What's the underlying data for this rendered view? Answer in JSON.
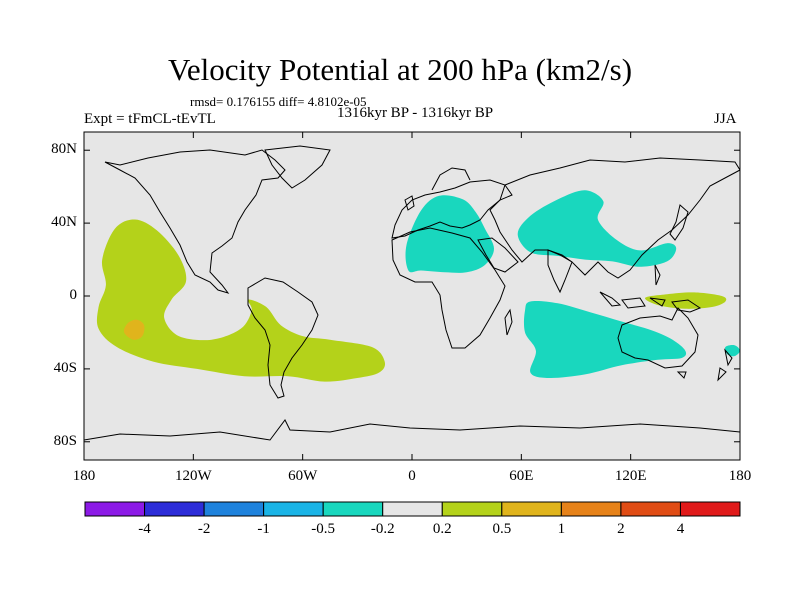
{
  "title": "Velocity Potential at 200 hPa (km2/s)",
  "stats": "rmsd= 0.176155 diff= 4.8102e-05",
  "left_label": "Expt = tFmCL-tEvTL",
  "center_label": "1316kyr BP - 1316kyr BP",
  "right_label": "JJA",
  "axes": {
    "lat_ticks": [
      {
        "value": 80,
        "label": "80N"
      },
      {
        "value": 40,
        "label": "40N"
      },
      {
        "value": 0,
        "label": "0"
      },
      {
        "value": -40,
        "label": "40S"
      },
      {
        "value": -80,
        "label": "80S"
      }
    ],
    "lon_ticks": [
      {
        "value": -180,
        "label": "180"
      },
      {
        "value": -120,
        "label": "120W"
      },
      {
        "value": -60,
        "label": "60W"
      },
      {
        "value": 0,
        "label": "0"
      },
      {
        "value": 60,
        "label": "60E"
      },
      {
        "value": 120,
        "label": "120E"
      },
      {
        "value": 180,
        "label": "180"
      }
    ],
    "lon_range": [
      -180,
      180
    ],
    "lat_range": [
      -90,
      90
    ]
  },
  "colorbar": {
    "colors": [
      "#8c1ae6",
      "#2d2dd8",
      "#1e82dc",
      "#1ab4e6",
      "#19d7be",
      "#e6e6e6",
      "#b4d21a",
      "#e0b41c",
      "#e68219",
      "#e04c14",
      "#e01a1a"
    ],
    "labels": [
      "-4",
      "-2",
      "-1",
      "-0.5",
      "-0.2",
      "0.2",
      "0.5",
      "1",
      "2",
      "4"
    ]
  },
  "colors": {
    "background": "#e6e6e6",
    "negative": "#19d7be",
    "positive": "#b4d21a",
    "strong_positive": "#e0b41c"
  },
  "chart_data": {
    "type": "heatmap",
    "title": "Velocity Potential at 200 hPa (km2/s)",
    "variable": "velocity potential anomaly at 200 hPa (km2/s)",
    "contour_levels": [
      -4,
      -2,
      -1,
      -0.5,
      -0.2,
      0.2,
      0.5,
      1,
      2,
      4
    ],
    "xlim": [
      -180,
      180
    ],
    "ylim": [
      -90,
      90
    ],
    "regions": [
      {
        "name": "Eastern Pacific positive anomaly",
        "category": "0.2 to 0.5",
        "color": "#b4d21a",
        "lonlat": [
          [
            -163,
            37
          ],
          [
            -152,
            42
          ],
          [
            -140,
            36
          ],
          [
            -128,
            22
          ],
          [
            -124,
            8
          ],
          [
            -132,
            -2
          ],
          [
            -136,
            -12
          ],
          [
            -128,
            -22
          ],
          [
            -110,
            -24
          ],
          [
            -94,
            -18
          ],
          [
            -88,
            -8
          ],
          [
            -90,
            -2
          ],
          [
            -80,
            -6
          ],
          [
            -72,
            -16
          ],
          [
            -60,
            -22
          ],
          [
            -45,
            -24
          ],
          [
            -22,
            -28
          ],
          [
            -15,
            -36
          ],
          [
            -18,
            -42
          ],
          [
            -30,
            -45
          ],
          [
            -48,
            -47
          ],
          [
            -68,
            -44
          ],
          [
            -92,
            -44
          ],
          [
            -118,
            -40
          ],
          [
            -142,
            -36
          ],
          [
            -162,
            -28
          ],
          [
            -172,
            -18
          ],
          [
            -172,
            -6
          ],
          [
            -168,
            6
          ],
          [
            -170,
            20
          ]
        ]
      },
      {
        "name": "South Pacific core",
        "category": "0.5 to 1",
        "color": "#e0b41c",
        "lonlat": [
          [
            -156,
            -15
          ],
          [
            -151,
            -13
          ],
          [
            -147,
            -16
          ],
          [
            -148,
            -22
          ],
          [
            -153,
            -24
          ],
          [
            -158,
            -20
          ]
        ]
      },
      {
        "name": "Europe and Africa negative anomaly",
        "category": "-0.5 to -0.2",
        "color": "#19d7be",
        "lonlat": [
          [
            -3,
            28
          ],
          [
            5,
            47
          ],
          [
            15,
            55
          ],
          [
            28,
            53
          ],
          [
            35,
            46
          ],
          [
            40,
            37
          ],
          [
            45,
            26
          ],
          [
            40,
            17
          ],
          [
            30,
            13
          ],
          [
            18,
            13
          ],
          [
            5,
            14
          ],
          [
            -2,
            14
          ]
        ]
      },
      {
        "name": "Asia negative anomaly",
        "category": "-0.5 to -0.2",
        "color": "#19d7be",
        "lonlat": [
          [
            58,
            34
          ],
          [
            65,
            44
          ],
          [
            80,
            53
          ],
          [
            95,
            58
          ],
          [
            105,
            52
          ],
          [
            102,
            42
          ],
          [
            112,
            31
          ],
          [
            125,
            25
          ],
          [
            140,
            29
          ],
          [
            145,
            26
          ],
          [
            140,
            19
          ],
          [
            125,
            16
          ],
          [
            110,
            19
          ],
          [
            95,
            20
          ],
          [
            80,
            22
          ],
          [
            65,
            24
          ]
        ]
      },
      {
        "name": "Indian Ocean negative anomaly",
        "category": "-0.5 to -0.2",
        "color": "#19d7be",
        "lonlat": [
          [
            65,
            -3
          ],
          [
            80,
            -4
          ],
          [
            98,
            -9
          ],
          [
            115,
            -14
          ],
          [
            132,
            -19
          ],
          [
            143,
            -24
          ],
          [
            150,
            -30
          ],
          [
            148,
            -34
          ],
          [
            135,
            -35
          ],
          [
            115,
            -38
          ],
          [
            95,
            -43
          ],
          [
            75,
            -45
          ],
          [
            65,
            -42
          ],
          [
            68,
            -30
          ],
          [
            62,
            -20
          ],
          [
            62,
            -8
          ]
        ]
      },
      {
        "name": "Western Pacific positive anomaly",
        "category": "0.2 to 0.5",
        "color": "#b4d21a",
        "lonlat": [
          [
            128,
            -1
          ],
          [
            140,
            1
          ],
          [
            155,
            2
          ],
          [
            170,
            0
          ],
          [
            172,
            -3
          ],
          [
            165,
            -6
          ],
          [
            150,
            -7
          ],
          [
            135,
            -5
          ]
        ]
      },
      {
        "name": "Southwest Pacific small negative anomaly",
        "category": "-0.5 to -0.2",
        "color": "#19d7be",
        "lonlat": [
          [
            172,
            -28
          ],
          [
            177,
            -27
          ],
          [
            180,
            -30
          ],
          [
            177,
            -33
          ],
          [
            173,
            -32
          ]
        ]
      }
    ]
  }
}
